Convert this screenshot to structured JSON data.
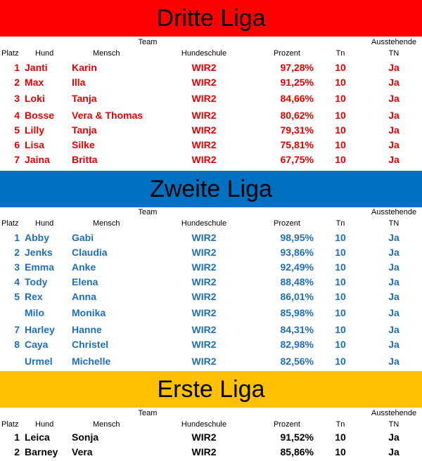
{
  "colors": {
    "red": "#ff0000",
    "blue": "#0070c0",
    "gold": "#ffc000",
    "red_text": "#e60000",
    "blue_text": "#1f6fb5",
    "black_text": "#000000"
  },
  "headers": {
    "team": "Team",
    "ausstehende": "Ausstehende",
    "platz": "Platz",
    "hund": "Hund",
    "mensch": "Mensch",
    "hundeschule": "Hundeschule",
    "prozent": "Prozent",
    "tn_short": "Tn",
    "tn": "TN"
  },
  "leagues": [
    {
      "title": "Dritte Liga",
      "banner_color": "#ff0000",
      "text_color": "#e60000",
      "rows": [
        {
          "platz": "1",
          "hund": "Janti",
          "mensch": "Karin",
          "hundeschule": "WIR2",
          "prozent": "97,28%",
          "tn": "10",
          "ausstehende": "Ja"
        },
        {
          "platz": "2",
          "hund": "Max",
          "mensch": "Illa",
          "hundeschule": "WIR2",
          "prozent": "91,25%",
          "tn": "10",
          "ausstehende": "Ja"
        },
        {
          "platz": "3",
          "hund": "Loki",
          "mensch": "Tanja",
          "hundeschule": "WIR2",
          "prozent": "84,66%",
          "tn": "10",
          "ausstehende": "Ja"
        },
        {
          "platz": "4",
          "hund": "Bosse",
          "mensch": "Vera & Thomas",
          "hundeschule": "WIR2",
          "prozent": "80,62%",
          "tn": "10",
          "ausstehende": "Ja"
        },
        {
          "platz": "5",
          "hund": "Lilly",
          "mensch": "Tanja",
          "hundeschule": "WIR2",
          "prozent": "79,31%",
          "tn": "10",
          "ausstehende": "Ja"
        },
        {
          "platz": "6",
          "hund": "Lisa",
          "mensch": "Silke",
          "hundeschule": "WIR2",
          "prozent": "75,81%",
          "tn": "10",
          "ausstehende": "Ja"
        },
        {
          "platz": "7",
          "hund": "Jaina",
          "mensch": "Britta",
          "hundeschule": "WIR2",
          "prozent": "67,75%",
          "tn": "10",
          "ausstehende": "Ja"
        }
      ]
    },
    {
      "title": "Zweite Liga",
      "banner_color": "#0070c0",
      "text_color": "#1f6fb5",
      "rows": [
        {
          "platz": "1",
          "hund": "Abby",
          "mensch": "Gabi",
          "hundeschule": "WIR2",
          "prozent": "98,95%",
          "tn": "10",
          "ausstehende": "Ja"
        },
        {
          "platz": "2",
          "hund": "Jenks",
          "mensch": "Claudia",
          "hundeschule": "WIR2",
          "prozent": "93,86%",
          "tn": "10",
          "ausstehende": "Ja"
        },
        {
          "platz": "3",
          "hund": "Emma",
          "mensch": "Anke",
          "hundeschule": "WIR2",
          "prozent": "92,49%",
          "tn": "10",
          "ausstehende": "Ja"
        },
        {
          "platz": "4",
          "hund": "Tody",
          "mensch": "Elena",
          "hundeschule": "WIR2",
          "prozent": "88,48%",
          "tn": "10",
          "ausstehende": "Ja"
        },
        {
          "platz": "5",
          "hund": "Rex",
          "mensch": "Anna",
          "hundeschule": "WIR2",
          "prozent": "86,01%",
          "tn": "10",
          "ausstehende": "Ja"
        },
        {
          "platz": "",
          "hund": "Milo",
          "mensch": "Monika",
          "hundeschule": "WIR2",
          "prozent": "85,98%",
          "tn": "10",
          "ausstehende": "Ja"
        },
        {
          "platz": "7",
          "hund": "Harley",
          "mensch": "Hanne",
          "hundeschule": "WIR2",
          "prozent": "84,31%",
          "tn": "10",
          "ausstehende": "Ja"
        },
        {
          "platz": "8",
          "hund": "Caya",
          "mensch": "Christel",
          "hundeschule": "WIR2",
          "prozent": "82,98%",
          "tn": "10",
          "ausstehende": "Ja"
        },
        {
          "platz": "",
          "hund": "Urmel",
          "mensch": "Michelle",
          "hundeschule": "WIR2",
          "prozent": "82,56%",
          "tn": "10",
          "ausstehende": "Ja"
        }
      ]
    },
    {
      "title": "Erste Liga",
      "banner_color": "#ffc000",
      "text_color": "#000000",
      "rows": [
        {
          "platz": "1",
          "hund": "Leica",
          "mensch": "Sonja",
          "hundeschule": "WIR2",
          "prozent": "91,52%",
          "tn": "10",
          "ausstehende": "Ja"
        },
        {
          "platz": "2",
          "hund": "Barney",
          "mensch": "Vera",
          "hundeschule": "WIR2",
          "prozent": "85,86%",
          "tn": "10",
          "ausstehende": "Ja"
        }
      ]
    }
  ]
}
